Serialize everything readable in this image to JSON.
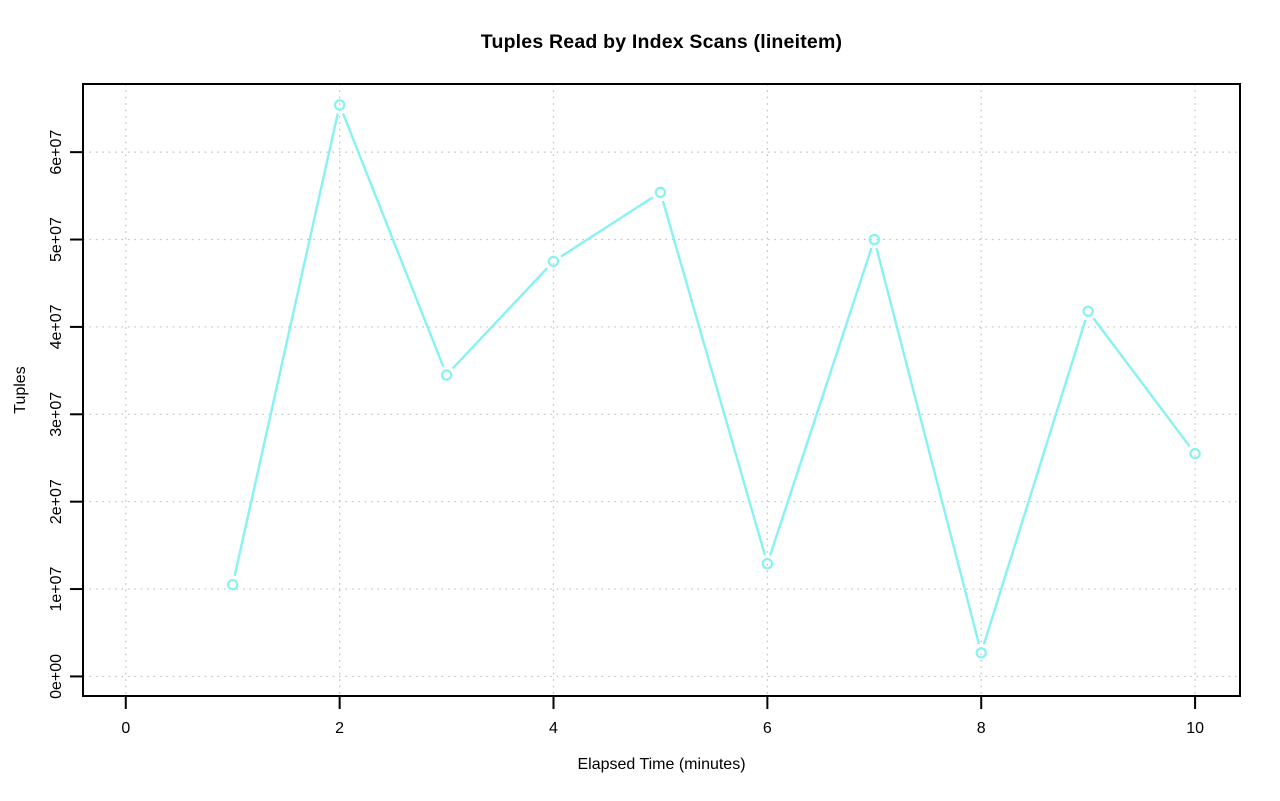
{
  "page": {
    "background": "#FFFFFF"
  },
  "chart_data": {
    "type": "line",
    "title": "Tuples Read by Index Scans (lineitem)",
    "xlabel": "Elapsed Time (minutes)",
    "ylabel": "Tuples",
    "x": [
      1,
      2,
      3,
      4,
      5,
      6,
      7,
      8,
      9,
      10
    ],
    "values": [
      10500000,
      65400000,
      34500000,
      47500000,
      55400000,
      12900000,
      50000000,
      2700000,
      41800000,
      25500000
    ],
    "marker": "open-circle",
    "line_style": "solid",
    "plot_style": "line-with-point-gaps",
    "x_ticks": [
      0,
      2,
      4,
      6,
      8,
      10
    ],
    "x_tick_labels": [
      "0",
      "2",
      "4",
      "6",
      "8",
      "10"
    ],
    "y_ticks": [
      0,
      10000000,
      20000000,
      30000000,
      40000000,
      50000000,
      60000000
    ],
    "y_tick_labels": [
      "0e+00",
      "1e+07",
      "2e+07",
      "3e+07",
      "4e+07",
      "5e+07",
      "6e+07"
    ],
    "xlim": [
      -0.4,
      10.42
    ],
    "ylim": [
      -2240000,
      67800000
    ],
    "grid": "dotted",
    "legend_position": "none",
    "colors": {
      "series": "#87F2F2",
      "grid": "#BFBFBF",
      "axis": "#000000",
      "text": "#000000",
      "background": "#FFFFFF"
    }
  }
}
